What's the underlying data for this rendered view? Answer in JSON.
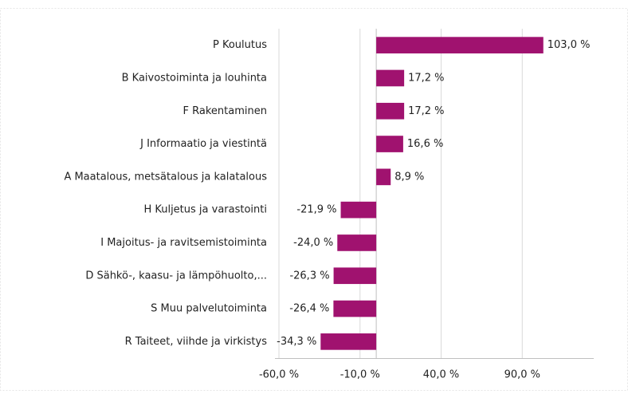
{
  "chart_data": {
    "type": "barh",
    "categories": [
      "P  Koulutus",
      "B  Kaivostoiminta ja louhinta",
      "F  Rakentaminen",
      "J  Informaatio ja viestintä",
      "A  Maatalous, metsätalous ja kalatalous",
      "H  Kuljetus ja varastointi",
      "I  Majoitus- ja ravitsemistoiminta",
      "D  Sähkö-, kaasu- ja lämpöhuolto,...",
      "S  Muu palvelutoiminta",
      "R  Taiteet, viihde ja virkistys"
    ],
    "values": [
      103.0,
      17.2,
      17.2,
      16.6,
      8.9,
      -21.9,
      -24.0,
      -26.3,
      -26.4,
      -34.3
    ],
    "value_labels": [
      "103,0 %",
      "17,2 %",
      "17,2 %",
      "16,6 %",
      "8,9 %",
      "-21,9 %",
      "-24,0 %",
      "-26,3 %",
      "-26,4 %",
      "-34,3 %"
    ],
    "color": "#a0126f",
    "xlim": [
      -60,
      110
    ],
    "xticks": [
      {
        "value": -60,
        "label": "-60,0 %"
      },
      {
        "value": -10,
        "label": "-10,0 %"
      },
      {
        "value": 40,
        "label": "40,0 %"
      },
      {
        "value": 90,
        "label": "90,0 %"
      }
    ],
    "grid": true
  }
}
